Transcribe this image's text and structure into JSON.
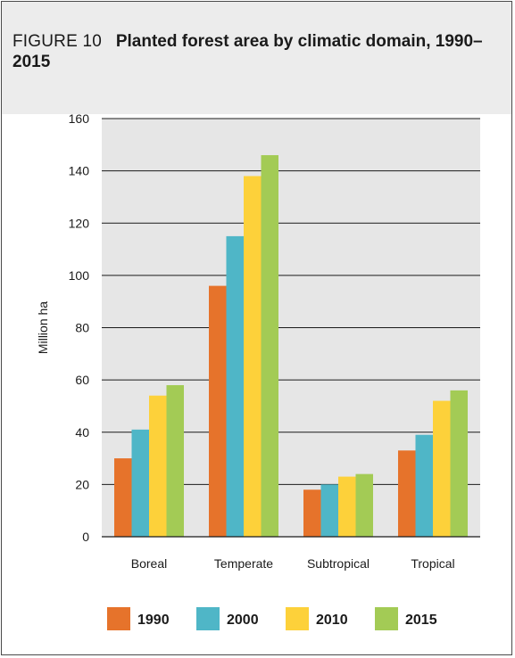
{
  "figure": {
    "label": "FIGURE 10",
    "title": "Planted forest area by climatic domain, 1990–2015"
  },
  "colors": {
    "plot_background": "#e6e6e6",
    "grid": "#1a1a1a",
    "series_1990": "#e6732b",
    "series_2000": "#4fb6c7",
    "series_2010": "#fdd13a",
    "series_2015": "#a3cb55"
  },
  "chart_data": {
    "type": "bar",
    "title": "Planted forest area by climatic domain, 1990–2015",
    "xlabel": "",
    "ylabel": "Million ha",
    "ylim": [
      0,
      160
    ],
    "yticks": [
      0,
      20,
      40,
      60,
      80,
      100,
      120,
      140,
      160
    ],
    "grid": true,
    "legend_position": "bottom",
    "categories": [
      "Boreal",
      "Temperate",
      "Subtropical",
      "Tropical"
    ],
    "series": [
      {
        "name": "1990",
        "color": "#e6732b",
        "values": [
          30,
          96,
          18,
          33
        ]
      },
      {
        "name": "2000",
        "color": "#4fb6c7",
        "values": [
          41,
          115,
          20,
          39
        ]
      },
      {
        "name": "2010",
        "color": "#fdd13a",
        "values": [
          54,
          138,
          23,
          52
        ]
      },
      {
        "name": "2015",
        "color": "#a3cb55",
        "values": [
          58,
          146,
          24,
          56
        ]
      }
    ]
  }
}
